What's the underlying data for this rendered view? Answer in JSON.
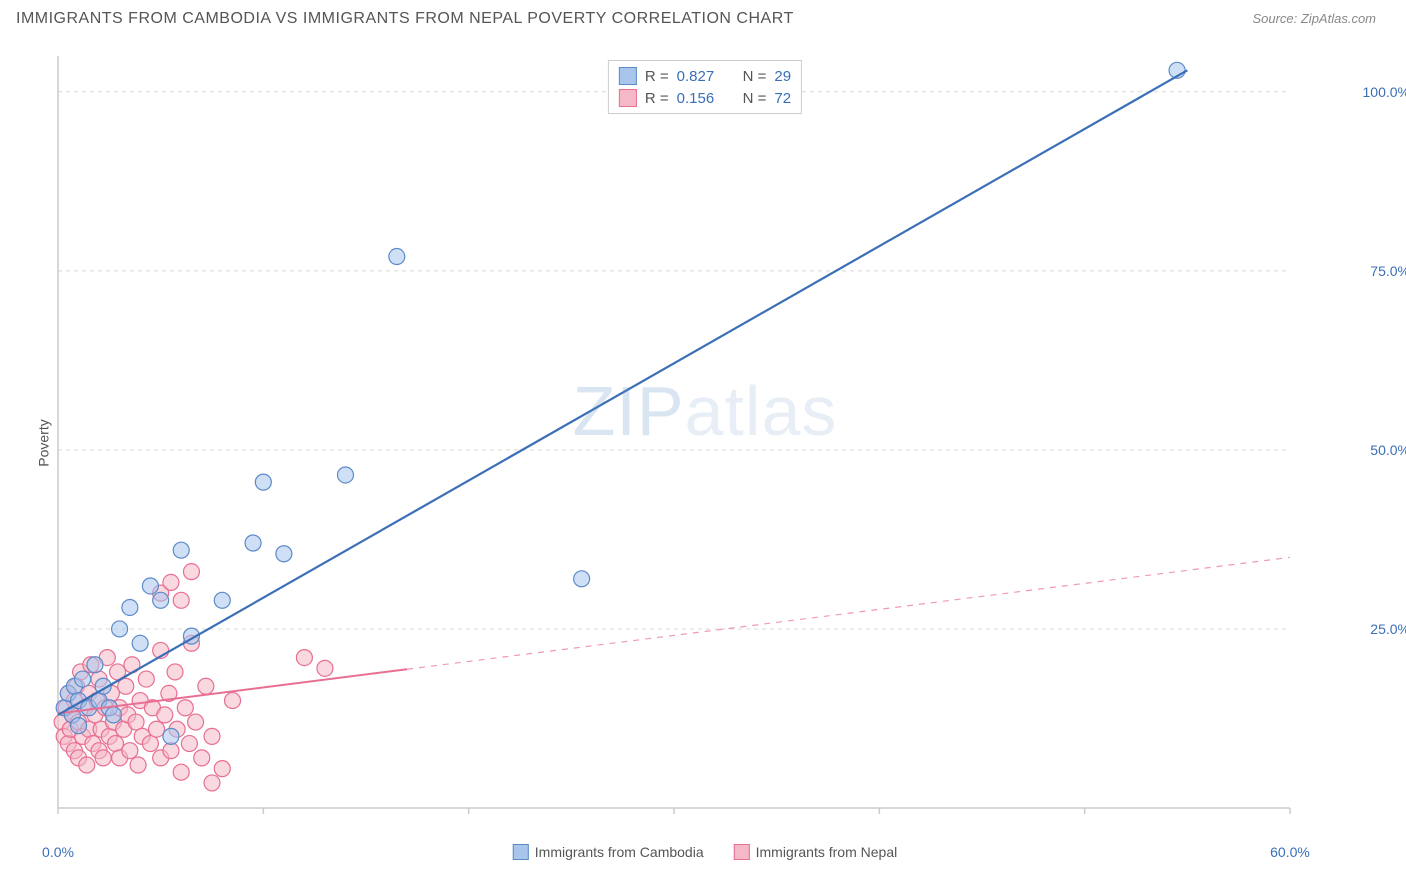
{
  "title": "IMMIGRANTS FROM CAMBODIA VS IMMIGRANTS FROM NEPAL POVERTY CORRELATION CHART",
  "source": "Source: ZipAtlas.com",
  "ylabel": "Poverty",
  "watermark_a": "ZIP",
  "watermark_b": "atlas",
  "chart": {
    "type": "scatter-with-regression",
    "x_domain": [
      0,
      60
    ],
    "y_domain": [
      0,
      105
    ],
    "background": "#ffffff",
    "grid_color": "#d8d8d8",
    "axis_color": "#cccccc",
    "y_ticks": [
      25,
      50,
      75,
      100
    ],
    "y_tick_labels": [
      "25.0%",
      "50.0%",
      "75.0%",
      "100.0%"
    ],
    "y_tick_color": "#3a6fb7",
    "x_ticks": [
      0,
      10,
      20,
      30,
      40,
      50,
      60
    ],
    "x_start_label": "0.0%",
    "x_end_label": "60.0%",
    "x_label_color": "#3a6fb7",
    "marker_radius": 8,
    "marker_opacity": 0.55,
    "series": [
      {
        "name": "Immigrants from Cambodia",
        "color_fill": "#a8c5ec",
        "color_stroke": "#5b8bc9",
        "R": "0.827",
        "N": "29",
        "regression": {
          "x1": 0,
          "y1": 13,
          "x2": 55,
          "y2": 103,
          "solid_to_x": 55,
          "stroke": "#3a6fb7",
          "width": 2.2
        },
        "points": [
          [
            0.3,
            14
          ],
          [
            0.5,
            16
          ],
          [
            0.7,
            13
          ],
          [
            0.8,
            17
          ],
          [
            1.0,
            11.5
          ],
          [
            1.0,
            15
          ],
          [
            1.2,
            18
          ],
          [
            1.5,
            14
          ],
          [
            1.8,
            20
          ],
          [
            2.0,
            15
          ],
          [
            2.2,
            17
          ],
          [
            2.5,
            14
          ],
          [
            2.7,
            13
          ],
          [
            3.0,
            25
          ],
          [
            3.5,
            28
          ],
          [
            4.0,
            23
          ],
          [
            4.5,
            31
          ],
          [
            5.0,
            29
          ],
          [
            5.5,
            10
          ],
          [
            6.0,
            36
          ],
          [
            6.5,
            24
          ],
          [
            8.0,
            29
          ],
          [
            9.5,
            37
          ],
          [
            10.0,
            45.5
          ],
          [
            11.0,
            35.5
          ],
          [
            14.0,
            46.5
          ],
          [
            16.5,
            77
          ],
          [
            25.5,
            32
          ],
          [
            54.5,
            103
          ]
        ]
      },
      {
        "name": "Immigrants from Nepal",
        "color_fill": "#f4b8c6",
        "color_stroke": "#e86f91",
        "R": "0.156",
        "N": "72",
        "regression": {
          "x1": 0,
          "y1": 13.2,
          "x2": 60,
          "y2": 35,
          "solid_to_x": 17,
          "stroke": "#e86f91",
          "width": 2
        },
        "points": [
          [
            0.2,
            12
          ],
          [
            0.3,
            10
          ],
          [
            0.4,
            14
          ],
          [
            0.5,
            9
          ],
          [
            0.5,
            16
          ],
          [
            0.6,
            11
          ],
          [
            0.7,
            13
          ],
          [
            0.8,
            8
          ],
          [
            0.8,
            15
          ],
          [
            0.9,
            17
          ],
          [
            1.0,
            7
          ],
          [
            1.0,
            12
          ],
          [
            1.1,
            19
          ],
          [
            1.2,
            10
          ],
          [
            1.3,
            14
          ],
          [
            1.4,
            6
          ],
          [
            1.5,
            16
          ],
          [
            1.5,
            11
          ],
          [
            1.6,
            20
          ],
          [
            1.7,
            9
          ],
          [
            1.8,
            13
          ],
          [
            1.9,
            15
          ],
          [
            2.0,
            8
          ],
          [
            2.0,
            18
          ],
          [
            2.1,
            11
          ],
          [
            2.2,
            7
          ],
          [
            2.3,
            14
          ],
          [
            2.4,
            21
          ],
          [
            2.5,
            10
          ],
          [
            2.6,
            16
          ],
          [
            2.7,
            12
          ],
          [
            2.8,
            9
          ],
          [
            2.9,
            19
          ],
          [
            3.0,
            14
          ],
          [
            3.0,
            7
          ],
          [
            3.2,
            11
          ],
          [
            3.3,
            17
          ],
          [
            3.4,
            13
          ],
          [
            3.5,
            8
          ],
          [
            3.6,
            20
          ],
          [
            3.8,
            12
          ],
          [
            3.9,
            6
          ],
          [
            4.0,
            15
          ],
          [
            4.1,
            10
          ],
          [
            4.3,
            18
          ],
          [
            4.5,
            9
          ],
          [
            4.6,
            14
          ],
          [
            4.8,
            11
          ],
          [
            5.0,
            7
          ],
          [
            5.0,
            22
          ],
          [
            5.2,
            13
          ],
          [
            5.4,
            16
          ],
          [
            5.5,
            8
          ],
          [
            5.7,
            19
          ],
          [
            5.8,
            11
          ],
          [
            6.0,
            5
          ],
          [
            6.2,
            14
          ],
          [
            6.4,
            9
          ],
          [
            6.5,
            23
          ],
          [
            6.7,
            12
          ],
          [
            7.0,
            7
          ],
          [
            7.2,
            17
          ],
          [
            7.5,
            3.5
          ],
          [
            7.5,
            10
          ],
          [
            8.0,
            5.5
          ],
          [
            8.5,
            15
          ],
          [
            5.0,
            30
          ],
          [
            5.5,
            31.5
          ],
          [
            6.0,
            29
          ],
          [
            6.5,
            33
          ],
          [
            12.0,
            21
          ],
          [
            13.0,
            19.5
          ]
        ]
      }
    ]
  },
  "legend": {
    "R_label": "R =",
    "N_label": "N ="
  }
}
